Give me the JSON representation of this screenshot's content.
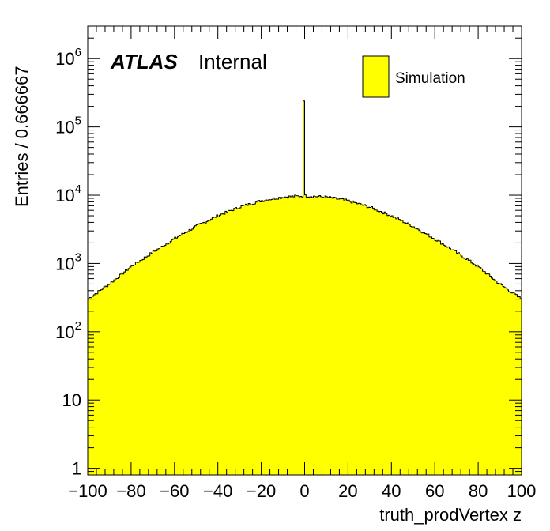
{
  "chart_data": {
    "type": "bar",
    "xlabel": "truth_prodVertex z",
    "ylabel": "Entries / 0.666667",
    "xlim": [
      -100,
      100
    ],
    "ylim": [
      0.8,
      3000000
    ],
    "y_scale": "log",
    "x_ticks": [
      -100,
      -80,
      -60,
      -40,
      -20,
      0,
      20,
      40,
      60,
      80,
      100
    ],
    "x_tick_labels": [
      "−100",
      "−80",
      "−60",
      "−40",
      "−20",
      "0",
      "20",
      "40",
      "60",
      "80",
      "100"
    ],
    "y_ticks": [
      {
        "value": 1,
        "base": "1",
        "exp": ""
      },
      {
        "value": 10,
        "base": "10",
        "exp": ""
      },
      {
        "value": 100,
        "base": "10",
        "exp": "2"
      },
      {
        "value": 1000,
        "base": "10",
        "exp": "3"
      },
      {
        "value": 10000,
        "base": "10",
        "exp": "4"
      },
      {
        "value": 100000,
        "base": "10",
        "exp": "5"
      },
      {
        "value": 1000000,
        "base": "10",
        "exp": "6"
      }
    ],
    "bin_width": 0.666667,
    "profile": {
      "x": [
        -100,
        -90,
        -80,
        -70,
        -60,
        -50,
        -40,
        -30,
        -20,
        -10,
        0,
        10,
        20,
        30,
        40,
        50,
        60,
        70,
        80,
        90,
        100
      ],
      "y": [
        300,
        500,
        900,
        1450,
        2300,
        3500,
        5000,
        6700,
        8300,
        9400,
        9800,
        9400,
        8300,
        6700,
        5000,
        3500,
        2300,
        1450,
        900,
        500,
        300
      ]
    },
    "spike": {
      "x": 0,
      "y": 240000
    },
    "fill_color": "#ffff00",
    "line_color": "#000000",
    "atlas_label": "ATLAS",
    "atlas_sublabel": "Internal",
    "legend": {
      "entries": [
        {
          "name": "Simulation",
          "color": "#ffff00"
        }
      ],
      "position": "top-right"
    }
  }
}
